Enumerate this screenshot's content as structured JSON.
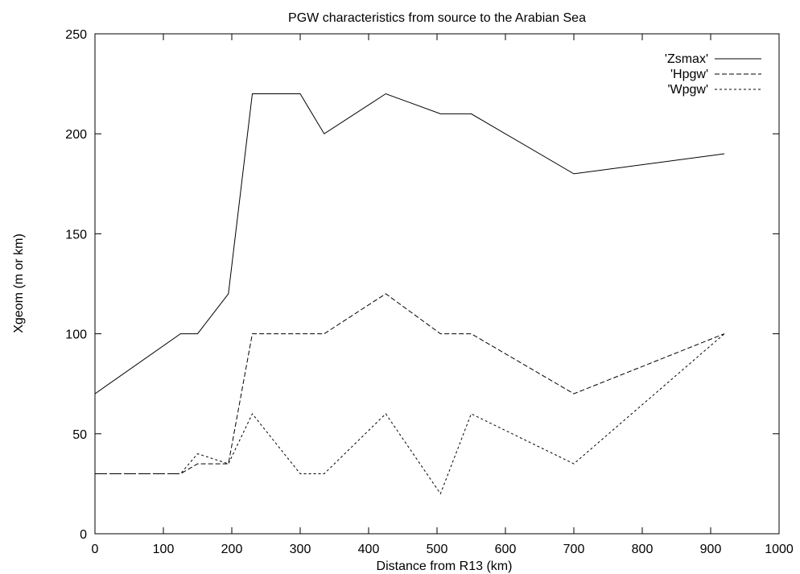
{
  "chart_data": {
    "type": "line",
    "title": "PGW characteristics from source to the Arabian Sea",
    "xlabel": "Distance from R13 (km)",
    "ylabel": "Xgeom (m or km)",
    "xlim": [
      0,
      1000
    ],
    "ylim": [
      0,
      250
    ],
    "xticks": [
      0,
      100,
      200,
      300,
      400,
      500,
      600,
      700,
      800,
      900,
      1000
    ],
    "yticks": [
      0,
      50,
      100,
      150,
      200,
      250
    ],
    "grid": false,
    "legend_position": "top-right",
    "series": [
      {
        "name": "'Zsmax'",
        "style": "solid",
        "x": [
          0,
          125,
          150,
          195,
          230,
          300,
          335,
          425,
          505,
          550,
          700,
          920
        ],
        "y": [
          70,
          100,
          100,
          120,
          220,
          220,
          200,
          220,
          210,
          210,
          180,
          190
        ]
      },
      {
        "name": "'Hpgw'",
        "style": "dashed",
        "x": [
          0,
          125,
          150,
          195,
          230,
          300,
          335,
          425,
          505,
          550,
          700,
          920
        ],
        "y": [
          30,
          30,
          35,
          35,
          100,
          100,
          100,
          120,
          100,
          100,
          70,
          100
        ]
      },
      {
        "name": "'Wpgw'",
        "style": "dotted",
        "x": [
          0,
          125,
          150,
          195,
          230,
          300,
          335,
          425,
          505,
          550,
          700,
          920
        ],
        "y": [
          30,
          30,
          40,
          35,
          60,
          30,
          30,
          60,
          20,
          60,
          35,
          100
        ]
      }
    ]
  }
}
